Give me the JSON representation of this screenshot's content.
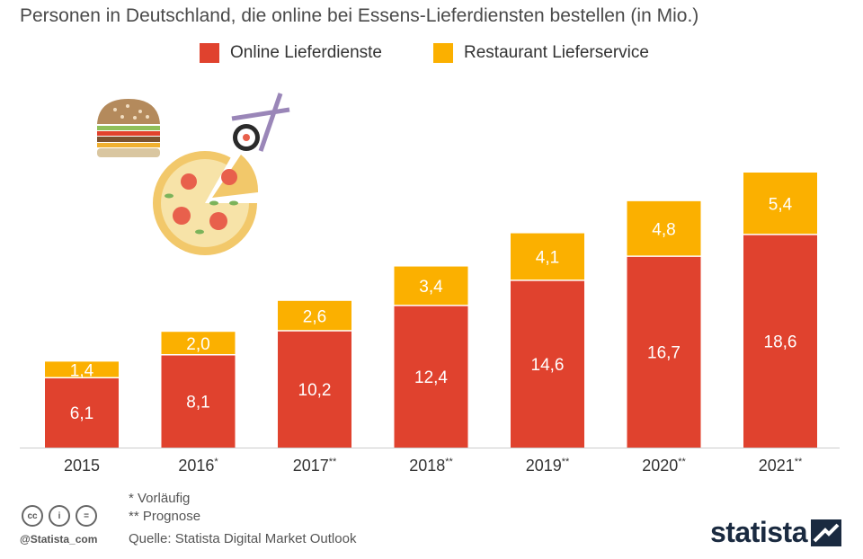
{
  "title": "Personen in Deutschland, die online bei Essens-Lieferdiensten bestellen (in Mio.)",
  "legend": [
    {
      "label": "Online Lieferdienste",
      "color": "#e0422e"
    },
    {
      "label": "Restaurant Lieferservice",
      "color": "#fbb000"
    }
  ],
  "chart_data": {
    "type": "bar",
    "stacked": true,
    "title": "Personen in Deutschland, die online bei Essens-Lieferdiensten bestellen (in Mio.)",
    "categories": [
      "2015",
      "2016",
      "2017",
      "2018",
      "2019",
      "2020",
      "2021"
    ],
    "category_marks": [
      "",
      "*",
      "**",
      "**",
      "**",
      "**",
      "**"
    ],
    "series": [
      {
        "name": "Online Lieferdienste",
        "color": "#e0422e",
        "values": [
          6.1,
          8.1,
          10.2,
          12.4,
          14.6,
          16.7,
          18.6
        ],
        "labels": [
          "6,1",
          "8,1",
          "10,2",
          "12,4",
          "14,6",
          "16,7",
          "18,6"
        ]
      },
      {
        "name": "Restaurant Lieferservice",
        "color": "#fbb000",
        "values": [
          1.4,
          2.0,
          2.6,
          3.4,
          4.1,
          4.8,
          5.4
        ],
        "labels": [
          "1,4",
          "2,0",
          "2,6",
          "3,4",
          "4,1",
          "4,8",
          "5,4"
        ]
      }
    ],
    "xlabel": "",
    "ylabel": "",
    "ylim": [
      0,
      24
    ],
    "grid": false,
    "legend_position": "top"
  },
  "footnotes": {
    "note1": "*   Vorläufig",
    "note2": "** Prognose",
    "source": "Quelle: Statista Digital Market Outlook"
  },
  "cc_icons": [
    "cc-icon",
    "by-icon",
    "nd-icon"
  ],
  "handle": "@Statista_com",
  "logo": "statista"
}
